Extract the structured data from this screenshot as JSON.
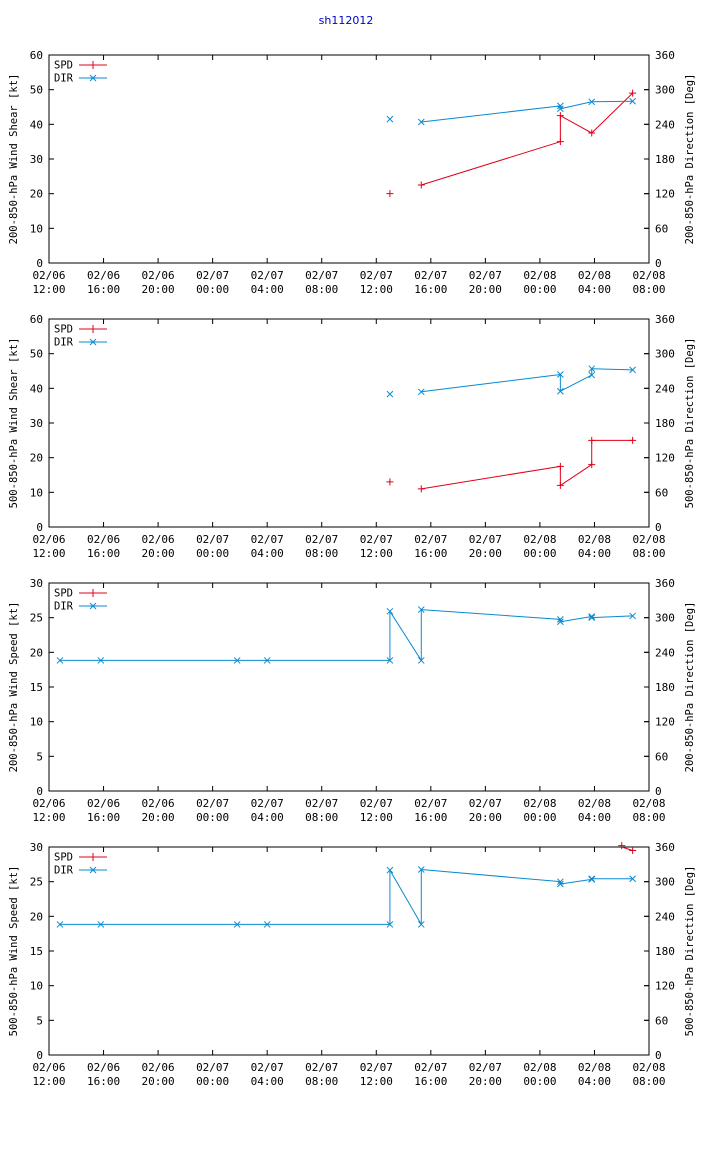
{
  "page_title": "sh112012",
  "colors": {
    "title": "#0000cc",
    "spd": "#e0001a",
    "dir": "#0a8ad0",
    "axis": "#000000"
  },
  "legend": {
    "spd": "SPD",
    "dir": "DIR"
  },
  "x_axis": {
    "ticks": [
      0,
      4,
      8,
      12,
      16,
      20,
      24,
      28,
      32,
      36,
      40,
      44
    ],
    "tick_labels": [
      [
        "02/06",
        "12:00"
      ],
      [
        "02/06",
        "16:00"
      ],
      [
        "02/06",
        "20:00"
      ],
      [
        "02/07",
        "00:00"
      ],
      [
        "02/07",
        "04:00"
      ],
      [
        "02/07",
        "08:00"
      ],
      [
        "02/07",
        "12:00"
      ],
      [
        "02/07",
        "16:00"
      ],
      [
        "02/07",
        "20:00"
      ],
      [
        "02/08",
        "00:00"
      ],
      [
        "02/08",
        "04:00"
      ],
      [
        "02/08",
        "08:00"
      ]
    ],
    "units": "hours since 02/06 12:00",
    "range": [
      0,
      44
    ]
  },
  "chart_data": [
    {
      "type": "line",
      "ylabel_left": "200-850-hPa Wind Shear [kt]",
      "ylabel_right": "200-850-hPa Direction [Deg]",
      "ylim_left": [
        0,
        60
      ],
      "ylim_right": [
        0,
        360
      ],
      "yticks_left": [
        0,
        10,
        20,
        30,
        40,
        50,
        60
      ],
      "yticks_right": [
        0,
        60,
        120,
        180,
        240,
        300,
        360
      ],
      "series": [
        {
          "name": "SPD",
          "axis": "left",
          "marker": "plus",
          "x": [
            25,
            27.3,
            37.5,
            37.5,
            39.8,
            42.8
          ],
          "y": [
            20,
            22.5,
            35,
            42.5,
            37.5,
            49
          ],
          "segments": [
            [
              1,
              2
            ],
            [
              2,
              3
            ],
            [
              3,
              4
            ],
            [
              4,
              5
            ]
          ]
        },
        {
          "name": "DIR",
          "axis": "right",
          "marker": "x",
          "x": [
            25,
            27.3,
            37.5,
            37.5,
            39.8,
            42.8
          ],
          "y": [
            249,
            244,
            272,
            267,
            279,
            280
          ],
          "segments": [
            [
              1,
              2
            ],
            [
              2,
              3
            ],
            [
              3,
              4
            ],
            [
              4,
              5
            ]
          ]
        }
      ]
    },
    {
      "type": "line",
      "ylabel_left": "500-850-hPa Wind Shear [kt]",
      "ylabel_right": "500-850-hPa Direction [Deg]",
      "ylim_left": [
        0,
        60
      ],
      "ylim_right": [
        0,
        360
      ],
      "yticks_left": [
        0,
        10,
        20,
        30,
        40,
        50,
        60
      ],
      "yticks_right": [
        0,
        60,
        120,
        180,
        240,
        300,
        360
      ],
      "series": [
        {
          "name": "SPD",
          "axis": "left",
          "marker": "plus",
          "x": [
            25,
            27.3,
            37.5,
            37.5,
            39.8,
            39.8,
            42.8
          ],
          "y": [
            13,
            11,
            17.5,
            12,
            18,
            25,
            25
          ],
          "segments": [
            [
              1,
              2
            ],
            [
              2,
              3
            ],
            [
              3,
              4
            ],
            [
              4,
              5
            ],
            [
              5,
              6
            ]
          ]
        },
        {
          "name": "DIR",
          "axis": "right",
          "marker": "x",
          "x": [
            25,
            27.3,
            37.5,
            37.5,
            39.8,
            39.8,
            42.8
          ],
          "y": [
            230,
            234,
            264,
            235,
            263,
            274,
            272
          ],
          "segments": [
            [
              1,
              2
            ],
            [
              2,
              3
            ],
            [
              3,
              4
            ],
            [
              4,
              5
            ],
            [
              5,
              6
            ]
          ]
        }
      ]
    },
    {
      "type": "line",
      "ylabel_left": "200-850-hPa Wind Speed [kt]",
      "ylabel_right": "200-850-hPa Direction [Deg]",
      "ylim_left": [
        0,
        30
      ],
      "ylim_right": [
        0,
        360
      ],
      "yticks_left": [
        0,
        5,
        10,
        15,
        20,
        25,
        30
      ],
      "yticks_right": [
        0,
        60,
        120,
        180,
        240,
        300,
        360
      ],
      "series": [
        {
          "name": "SPD",
          "axis": "left",
          "marker": "plus",
          "x": [],
          "y": [],
          "segments": []
        },
        {
          "name": "DIR",
          "axis": "right",
          "marker": "x",
          "x": [
            0.8,
            3.8,
            13.8,
            16,
            25,
            25,
            27.3,
            27.3,
            37.5,
            37.5,
            39.8,
            39.8,
            42.8
          ],
          "y": [
            226,
            226,
            226,
            226,
            226,
            311,
            226,
            314,
            297,
            293,
            302,
            300,
            303
          ],
          "segments": [
            [
              0,
              1
            ],
            [
              1,
              2
            ],
            [
              2,
              3
            ],
            [
              3,
              4
            ],
            [
              4,
              5
            ],
            [
              5,
              6
            ],
            [
              6,
              7
            ],
            [
              7,
              8
            ],
            [
              8,
              9
            ],
            [
              9,
              10
            ],
            [
              10,
              11
            ],
            [
              11,
              12
            ]
          ]
        }
      ]
    },
    {
      "type": "line",
      "ylabel_left": "500-850-hPa Wind Speed [kt]",
      "ylabel_right": "500-850-hPa Direction [Deg]",
      "ylim_left": [
        0,
        30
      ],
      "ylim_right": [
        0,
        360
      ],
      "yticks_left": [
        0,
        5,
        10,
        15,
        20,
        25,
        30
      ],
      "yticks_right": [
        0,
        60,
        120,
        180,
        240,
        300,
        360
      ],
      "series": [
        {
          "name": "SPD",
          "axis": "left",
          "marker": "plus",
          "x": [
            42,
            42.8
          ],
          "y": [
            30.2,
            29.5
          ],
          "segments": [
            [
              0,
              1
            ]
          ]
        },
        {
          "name": "DIR",
          "axis": "right",
          "marker": "x",
          "x": [
            0.8,
            3.8,
            13.8,
            16,
            25,
            25,
            27.3,
            27.3,
            37.5,
            37.5,
            39.8,
            39.8,
            42.8
          ],
          "y": [
            226,
            226,
            226,
            226,
            226,
            320,
            226,
            321,
            300,
            296,
            304,
            305,
            305
          ],
          "segments": [
            [
              0,
              1
            ],
            [
              1,
              2
            ],
            [
              2,
              3
            ],
            [
              3,
              4
            ],
            [
              4,
              5
            ],
            [
              5,
              6
            ],
            [
              6,
              7
            ],
            [
              7,
              8
            ],
            [
              8,
              9
            ],
            [
              9,
              10
            ],
            [
              10,
              11
            ],
            [
              11,
              12
            ]
          ]
        }
      ]
    }
  ]
}
